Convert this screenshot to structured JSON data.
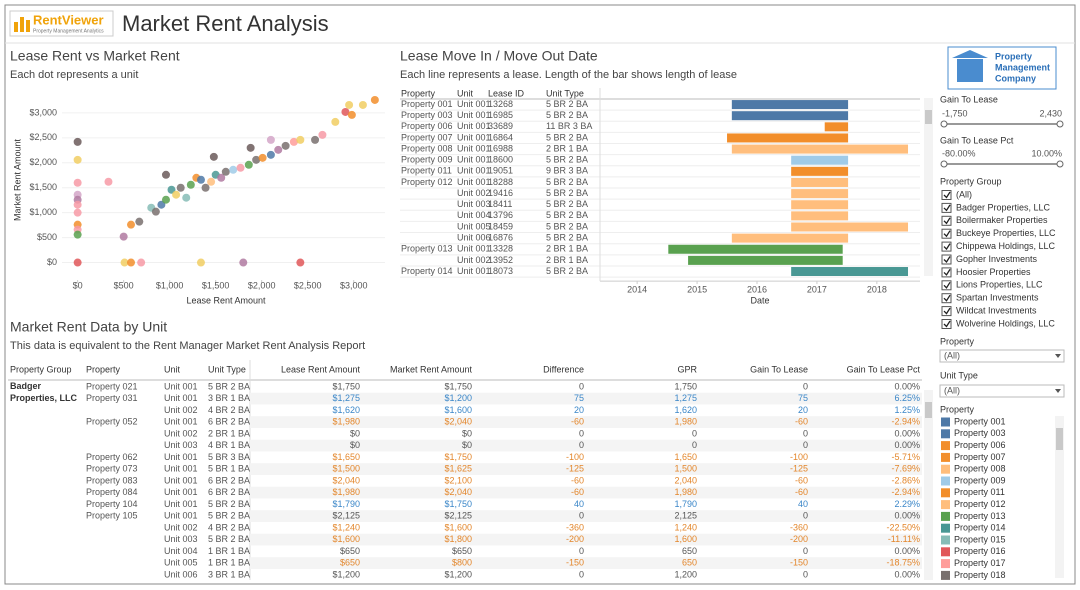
{
  "header": {
    "logo_name": "RentViewer",
    "logo_tagline": "Property Management Analytics",
    "title": "Market Rent Analysis",
    "company": [
      "Property",
      "Management",
      "Company"
    ]
  },
  "chart_data": [
    {
      "type": "scatter",
      "title": "Lease Rent vs Market Rent",
      "subtitle": "Each dot represents a unit",
      "x_label": "Lease Rent Amount",
      "y_label": "Market Rent Amount",
      "x": [
        0,
        0,
        0,
        0,
        0,
        0,
        0,
        0,
        0,
        0,
        0,
        335,
        510,
        580,
        690,
        1340,
        1800,
        2420,
        500,
        580,
        670,
        800,
        850,
        910,
        960,
        1020,
        1070,
        1120,
        1180,
        1230,
        1290,
        1340,
        1390,
        1450,
        1500,
        1560,
        1610,
        1690,
        1770,
        1860,
        1940,
        2010,
        2100,
        2180,
        2260,
        2350,
        2420,
        2580,
        2660,
        2800,
        2910,
        2980,
        3100,
        3230,
        960,
        1480,
        1880,
        2950,
        2100
      ],
      "values": [
        2420,
        2060,
        1600,
        1360,
        1260,
        1160,
        1000,
        760,
        660,
        560,
        0,
        1620,
        0,
        0,
        0,
        0,
        0,
        0,
        520,
        760,
        820,
        1100,
        1020,
        1160,
        1260,
        1460,
        1360,
        1500,
        1300,
        1560,
        1700,
        1660,
        1500,
        1620,
        1760,
        1700,
        1820,
        1860,
        1900,
        1960,
        2060,
        2100,
        2160,
        2260,
        2340,
        2420,
        2460,
        2460,
        2560,
        2820,
        3020,
        2960,
        3160,
        3260,
        1760,
        2120,
        2300,
        3160,
        2460
      ],
      "colors": [
        "#6b5b5b",
        "#f1ce63",
        "#f79aa6",
        "#d4a6c8",
        "#b07aa1",
        "#f79aa6",
        "#f79aa6",
        "#f28e2b",
        "#f79aa6",
        "#59a14f",
        "#e15759",
        "#f79aa6",
        "#f1ce63",
        "#f28e2b",
        "#f79aa6",
        "#f1ce63",
        "#b07aa1",
        "#e15759",
        "#b07aa1",
        "#f28e2b",
        "#79706e",
        "#86bcb6",
        "#79706e",
        "#4e79a7",
        "#59a14f",
        "#499894",
        "#f1ce63",
        "#79706e",
        "#86bcb6",
        "#59a14f",
        "#f28e2b",
        "#4e79a7",
        "#79706e",
        "#ffbe7d",
        "#499894",
        "#b07aa1",
        "#79706e",
        "#a0cbe8",
        "#f79aa6",
        "#59a14f",
        "#79706e",
        "#f28e2b",
        "#4e79a7",
        "#b07aa1",
        "#79706e",
        "#ff9d9a",
        "#f1ce63",
        "#79706e",
        "#f79aa6",
        "#f1ce63",
        "#e15759",
        "#f28e2b",
        "#f1ce63",
        "#f28e2b",
        "#6b5b5b",
        "#6b5b5b",
        "#6b5b5b",
        "#f1ce63",
        "#d4a6c8"
      ],
      "xlim": [
        -170,
        3340
      ],
      "ylim": [
        -350,
        3500
      ],
      "xticks": [
        {
          "value": 0,
          "label": "$0"
        },
        {
          "value": 500,
          "label": "$500"
        },
        {
          "value": 1000,
          "label": "$1,000"
        },
        {
          "value": 1500,
          "label": "$1,500"
        },
        {
          "value": 2000,
          "label": "$2,000"
        },
        {
          "value": 2500,
          "label": "$2,500"
        },
        {
          "value": 3000,
          "label": "$3,000"
        }
      ],
      "yticks": [
        {
          "value": 0,
          "label": "$0"
        },
        {
          "value": 500,
          "label": "$500"
        },
        {
          "value": 1000,
          "label": "$1,000"
        },
        {
          "value": 1500,
          "label": "$1,500"
        },
        {
          "value": 2000,
          "label": "$2,000"
        },
        {
          "value": 2500,
          "label": "$2,500"
        },
        {
          "value": 3000,
          "label": "$3,000"
        }
      ]
    },
    {
      "type": "gantt",
      "title": "Lease Move In / Move Out Date",
      "subtitle": "Each line represents a lease. Length of the bar shows length of lease",
      "x_label": "Date",
      "columns": [
        "Property",
        "Unit",
        "Lease ID",
        "Unit Type"
      ],
      "rows": [
        [
          "Property 001",
          "Unit 001",
          "13268",
          "5 BR 2 BA"
        ],
        [
          "Property 003",
          "Unit 001",
          "16985",
          "5 BR 2 BA"
        ],
        [
          "Property 006",
          "Unit 001",
          "33689",
          "11 BR 3 BA"
        ],
        [
          "Property 007",
          "Unit 001",
          "16864",
          "5 BR 2 BA"
        ],
        [
          "Property 008",
          "Unit 001",
          "16988",
          "2 BR 1 BA"
        ],
        [
          "Property 009",
          "Unit 001",
          "18600",
          "5 BR 2 BA"
        ],
        [
          "Property 011",
          "Unit 001",
          "19051",
          "9 BR 3 BA"
        ],
        [
          "Property 012",
          "Unit 001",
          "18288",
          "5 BR 2 BA"
        ],
        [
          null,
          "Unit 002",
          "19416",
          "5 BR 2 BA"
        ],
        [
          null,
          "Unit 003",
          "18411",
          "5 BR 2 BA"
        ],
        [
          null,
          "Unit 004",
          "13796",
          "5 BR 2 BA"
        ],
        [
          null,
          "Unit 005",
          "18459",
          "5 BR 2 BA"
        ],
        [
          null,
          "Unit 006",
          "16876",
          "5 BR 2 BA"
        ],
        [
          "Property 013",
          "Unit 001",
          "13328",
          "2 BR 1 BA"
        ],
        [
          null,
          "Unit 002",
          "13952",
          "2 BR 1 BA"
        ],
        [
          "Property 014",
          "Unit 001",
          "18073",
          "5 BR 2 BA"
        ]
      ],
      "start": [
        2015.58,
        2015.58,
        2017.13,
        2015.5,
        2015.58,
        2016.57,
        2016.57,
        2016.57,
        2016.57,
        2016.57,
        2016.57,
        2016.57,
        2015.58,
        2014.52,
        2014.85,
        2016.57
      ],
      "end": [
        2017.52,
        2017.52,
        2017.52,
        2017.52,
        2018.52,
        2017.52,
        2017.52,
        2017.52,
        2017.52,
        2017.52,
        2017.52,
        2018.52,
        2017.52,
        2017.43,
        2017.43,
        2018.52
      ],
      "colors": [
        "#4e79a7",
        "#4e79a7",
        "#f28e2b",
        "#f28e2b",
        "#ffbe7d",
        "#a0cbe8",
        "#f28e2b",
        "#ffbe7d",
        "#ffbe7d",
        "#ffbe7d",
        "#ffbe7d",
        "#ffbe7d",
        "#ffbe7d",
        "#59a14f",
        "#59a14f",
        "#499894"
      ],
      "xlim": [
        2013.38,
        2018.72
      ],
      "xticks": [
        2014,
        2015,
        2016,
        2017,
        2018
      ]
    }
  ],
  "table": {
    "title": "Market Rent Data by Unit",
    "subtitle": "This data is equivalent to the Rent Manager Market Rent Analysis Report",
    "columns": [
      "Property Group",
      "Property",
      "Unit",
      "Unit Type",
      "Lease Rent Amount",
      "Market Rent Amount",
      "Difference",
      "GPR",
      "Gain To Lease",
      "Gain To Lease Pct"
    ],
    "rows": [
      [
        "Badger Properties, LLC",
        "Property 021",
        "Unit 001",
        "5 BR 2 BA",
        "$1,750",
        "$1,750",
        "0",
        "1,750",
        "0",
        "0.00%"
      ],
      [
        null,
        "Property 031",
        "Unit 001",
        "3 BR 1 BA",
        "$1,275",
        "$1,200",
        "75",
        "1,275",
        "75",
        "6.25%"
      ],
      [
        null,
        null,
        "Unit 002",
        "4 BR 2 BA",
        "$1,620",
        "$1,600",
        "20",
        "1,620",
        "20",
        "1.25%"
      ],
      [
        null,
        "Property 052",
        "Unit 001",
        "6 BR 2 BA",
        "$1,980",
        "$2,040",
        "-60",
        "1,980",
        "-60",
        "-2.94%"
      ],
      [
        null,
        null,
        "Unit 002",
        "2 BR 1 BA",
        "$0",
        "$0",
        "0",
        "0",
        "0",
        "0.00%"
      ],
      [
        null,
        null,
        "Unit 003",
        "4 BR 1 BA",
        "$0",
        "$0",
        "0",
        "0",
        "0",
        "0.00%"
      ],
      [
        null,
        "Property 062",
        "Unit 001",
        "5 BR 3 BA",
        "$1,650",
        "$1,750",
        "-100",
        "1,650",
        "-100",
        "-5.71%"
      ],
      [
        null,
        "Property 073",
        "Unit 001",
        "5 BR 1 BA",
        "$1,500",
        "$1,625",
        "-125",
        "1,500",
        "-125",
        "-7.69%"
      ],
      [
        null,
        "Property 083",
        "Unit 001",
        "6 BR 2 BA",
        "$2,040",
        "$2,100",
        "-60",
        "2,040",
        "-60",
        "-2.86%"
      ],
      [
        null,
        "Property 084",
        "Unit 001",
        "6 BR 2 BA",
        "$1,980",
        "$2,040",
        "-60",
        "1,980",
        "-60",
        "-2.94%"
      ],
      [
        null,
        "Property 104",
        "Unit 001",
        "5 BR 2 BA",
        "$1,790",
        "$1,750",
        "40",
        "1,790",
        "40",
        "2.29%"
      ],
      [
        null,
        "Property 105",
        "Unit 001",
        "5 BR 2 BA",
        "$2,125",
        "$2,125",
        "0",
        "2,125",
        "0",
        "0.00%"
      ],
      [
        null,
        null,
        "Unit 002",
        "4 BR 2 BA",
        "$1,240",
        "$1,600",
        "-360",
        "1,240",
        "-360",
        "-22.50%"
      ],
      [
        null,
        null,
        "Unit 003",
        "5 BR 2 BA",
        "$1,600",
        "$1,800",
        "-200",
        "1,600",
        "-200",
        "-11.11%"
      ],
      [
        null,
        null,
        "Unit 004",
        "1 BR 1 BA",
        "$650",
        "$650",
        "0",
        "650",
        "0",
        "0.00%"
      ],
      [
        null,
        null,
        "Unit 005",
        "1 BR 1 BA",
        "$650",
        "$800",
        "-150",
        "650",
        "-150",
        "-18.75%"
      ],
      [
        null,
        null,
        "Unit 006",
        "3 BR 1 BA",
        "$1,200",
        "$1,200",
        "0",
        "1,200",
        "0",
        "0.00%"
      ]
    ]
  },
  "filters": {
    "gain_to_lease": {
      "label": "Gain To Lease",
      "min": "-1,750",
      "max": "2,430"
    },
    "gain_to_lease_pct": {
      "label": "Gain To Lease Pct",
      "min": "-80.00%",
      "max": "10.00%"
    },
    "property_group": {
      "label": "Property Group",
      "options": [
        "(All)",
        "Badger Properties, LLC",
        "Boilermaker Properties",
        "Buckeye Properties, LLC",
        "Chippewa Holdings, LLC",
        "Gopher Investments",
        "Hoosier Properties",
        "Lions Properties, LLC",
        "Spartan Investments",
        "Wildcat Investments",
        "Wolverine Holdings, LLC"
      ]
    },
    "property": {
      "label": "Property",
      "value": "(All)"
    },
    "unit_type": {
      "label": "Unit Type",
      "value": "(All)"
    }
  },
  "legend": {
    "title": "Property",
    "items": [
      {
        "name": "Property 001",
        "color": "#4e79a7"
      },
      {
        "name": "Property 003",
        "color": "#4e79a7"
      },
      {
        "name": "Property 006",
        "color": "#f28e2b"
      },
      {
        "name": "Property 007",
        "color": "#f28e2b"
      },
      {
        "name": "Property 008",
        "color": "#ffbe7d"
      },
      {
        "name": "Property 009",
        "color": "#a0cbe8"
      },
      {
        "name": "Property 011",
        "color": "#f28e2b"
      },
      {
        "name": "Property 012",
        "color": "#ffbe7d"
      },
      {
        "name": "Property 013",
        "color": "#59a14f"
      },
      {
        "name": "Property 014",
        "color": "#499894"
      },
      {
        "name": "Property 015",
        "color": "#86bcb6"
      },
      {
        "name": "Property 016",
        "color": "#e15759"
      },
      {
        "name": "Property 017",
        "color": "#ff9d9a"
      },
      {
        "name": "Property 018",
        "color": "#79706e"
      }
    ]
  }
}
